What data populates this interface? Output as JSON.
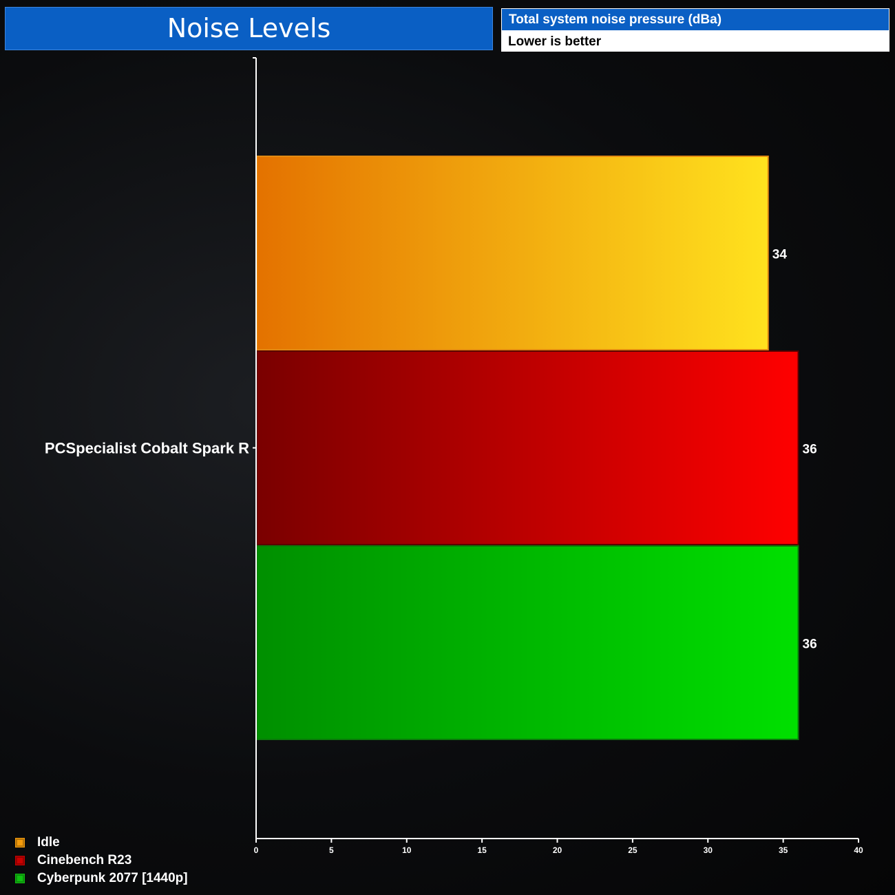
{
  "header": {
    "title": "Noise Levels",
    "subtitle": "Total system noise pressure (dBa)",
    "note": "Lower is better"
  },
  "chart_data": {
    "type": "bar",
    "orientation": "horizontal",
    "categories": [
      "PCSpecialist Cobalt Spark R"
    ],
    "series": [
      {
        "name": "Idle",
        "values": [
          34
        ],
        "color_start": "#e47200",
        "color_end": "#ffe21e",
        "border": "#e38a12"
      },
      {
        "name": "Cinebench R23",
        "values": [
          36
        ],
        "color_start": "#7a0000",
        "color_end": "#ff0000",
        "border": "#5a0000"
      },
      {
        "name": "Cyberpunk 2077 [1440p]",
        "values": [
          36
        ],
        "color_start": "#008f00",
        "color_end": "#00e000",
        "border": "#0a7a0a"
      }
    ],
    "xlim": [
      0,
      40
    ],
    "xticks": [
      0,
      5,
      10,
      15,
      20,
      25,
      30,
      35,
      40
    ],
    "legend_position": "bottom-left",
    "grid": false
  },
  "legend": {
    "items": [
      {
        "label": "Idle",
        "color": "#f39b0c"
      },
      {
        "label": "Cinebench R23",
        "color": "#c80000"
      },
      {
        "label": "Cyberpunk 2077 [1440p]",
        "color": "#10c010"
      }
    ]
  }
}
